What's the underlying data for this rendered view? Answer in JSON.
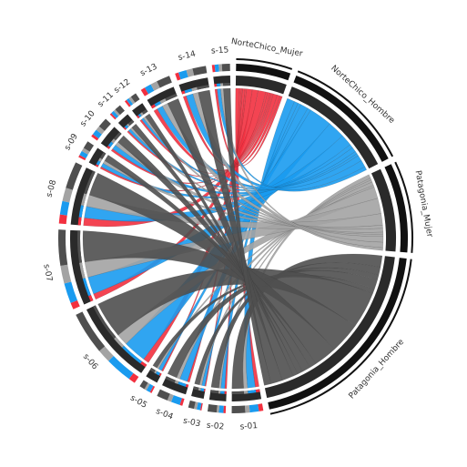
{
  "chart_data": {
    "type": "chord",
    "groups": [
      {
        "name": "NorteChico_Mujer",
        "color": "#f2303f"
      },
      {
        "name": "NorteChico_Hombre",
        "color": "#1a9bef"
      },
      {
        "name": "Patagonia_Mujer",
        "color": "#a3a3a3"
      },
      {
        "name": "Patagonia_Hombre",
        "color": "#4f4f4f"
      }
    ],
    "targets": [
      "s-01",
      "s-02",
      "s-03",
      "s-04",
      "s-05",
      "s-06",
      "s-07",
      "s-08",
      "s-09",
      "s-10",
      "s-11",
      "s-12",
      "s-13",
      "s-14",
      "s-15"
    ],
    "matrix": [
      [
        1000,
        500,
        300,
        600,
        400,
        1500,
        1500,
        2000,
        500,
        600,
        400,
        500,
        1000,
        800,
        600
      ],
      [
        2000,
        1000,
        800,
        2000,
        900,
        6000,
        4500,
        3000,
        1000,
        1200,
        700,
        600,
        1500,
        1800,
        900
      ],
      [
        1000,
        500,
        600,
        900,
        500,
        3000,
        4000,
        3000,
        800,
        1000,
        500,
        600,
        1500,
        1400,
        700
      ],
      [
        3000,
        2000,
        1300,
        2500,
        1200,
        9500,
        8000,
        6000,
        1700,
        2200,
        1400,
        1300,
        3000,
        3000,
        1800
      ]
    ]
  }
}
